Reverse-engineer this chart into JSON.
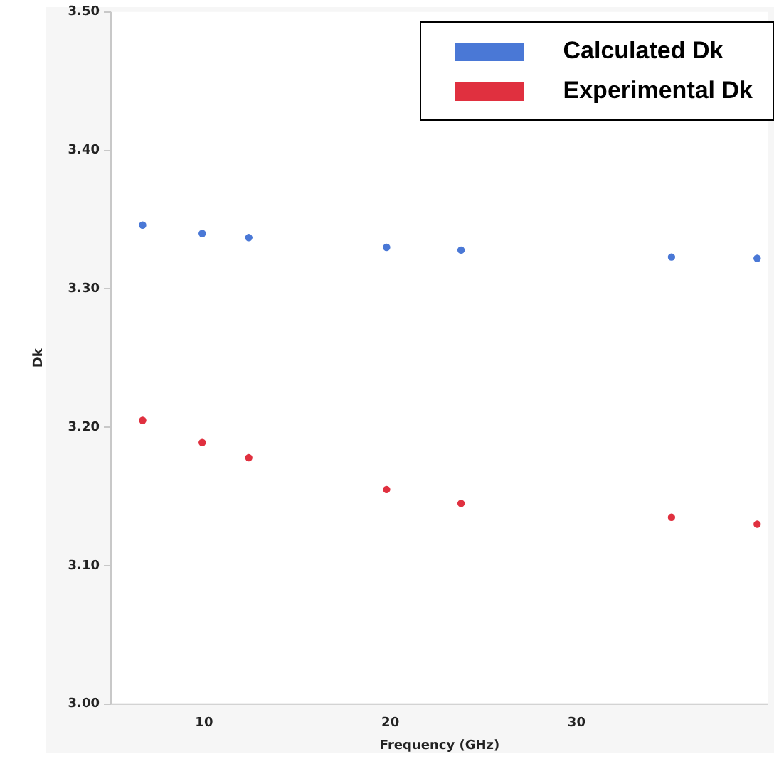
{
  "chart_data": {
    "type": "scatter",
    "xlabel": "Frequency (GHz)",
    "ylabel": "Dk",
    "x": [
      6.7,
      9.9,
      12.4,
      19.8,
      23.8,
      35.1,
      39.7
    ],
    "series": [
      {
        "name": "Calculated Dk",
        "color": "#4a78d6",
        "values": [
          3.346,
          3.34,
          3.337,
          3.33,
          3.328,
          3.323,
          3.322
        ]
      },
      {
        "name": "Experimental Dk",
        "color": "#e0303f",
        "values": [
          3.205,
          3.189,
          3.178,
          3.155,
          3.145,
          3.135,
          3.13
        ]
      }
    ],
    "xlim": [
      5,
      40.3
    ],
    "xticks": [
      10,
      20,
      30
    ],
    "ylim": [
      3.0,
      3.5
    ],
    "yticks": [
      {
        "value": 3.0,
        "label": "3.00"
      },
      {
        "value": 3.1,
        "label": "3.10"
      },
      {
        "value": 3.2,
        "label": "3.20"
      },
      {
        "value": 3.3,
        "label": "3.30"
      },
      {
        "value": 3.4,
        "label": "3.40"
      },
      {
        "value": 3.5,
        "label": "3.50"
      }
    ],
    "grid": false,
    "legend": "top right",
    "marker": "circle"
  }
}
